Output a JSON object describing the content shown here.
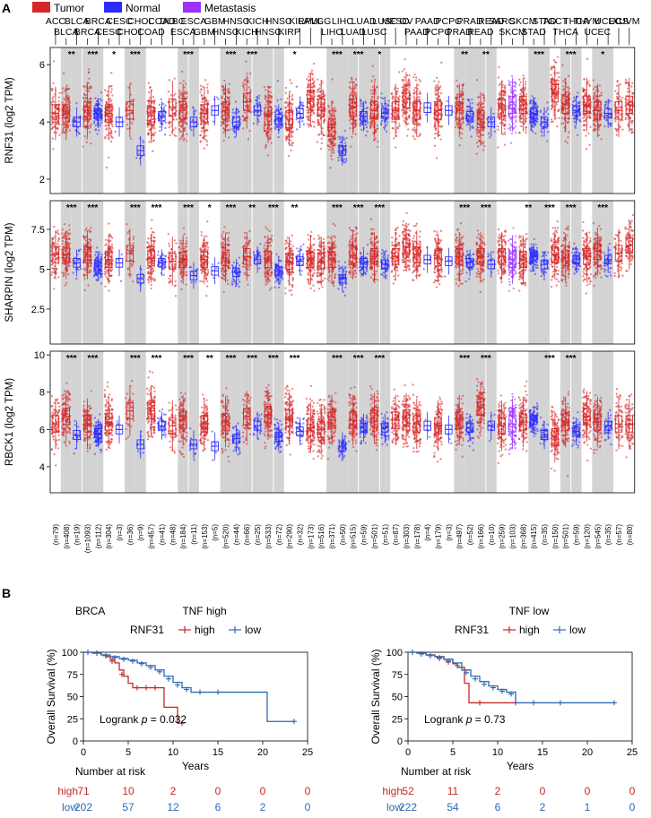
{
  "panel_a": {
    "label": "A",
    "legend": [
      {
        "label": "Tumor",
        "color": "#d62728"
      },
      {
        "label": "Normal",
        "color": "#2b2bff"
      },
      {
        "label": "Metastasis",
        "color": "#9b30ff"
      }
    ],
    "cancer_types": [
      {
        "name": "ACC",
        "top": true
      },
      {
        "name": "BLCA",
        "top": false
      },
      {
        "name": "BLCA",
        "top": true
      },
      {
        "name": "BRCA",
        "top": false
      },
      {
        "name": "BRCA",
        "top": true
      },
      {
        "name": "CESC",
        "top": false
      },
      {
        "name": "CESC",
        "top": true
      },
      {
        "name": "CHOL",
        "top": false
      },
      {
        "name": "CHOL",
        "top": true
      },
      {
        "name": "COAD",
        "top": false
      },
      {
        "name": "COAD",
        "top": true
      },
      {
        "name": "DLBC",
        "top": true
      },
      {
        "name": "ESCA",
        "top": false
      },
      {
        "name": "ESCA",
        "top": true
      },
      {
        "name": "GBM",
        "top": false
      },
      {
        "name": "GBM",
        "top": true
      },
      {
        "name": "HNSC",
        "top": false
      },
      {
        "name": "HNSC",
        "top": true
      },
      {
        "name": "KICH",
        "top": false
      },
      {
        "name": "KICH",
        "top": true
      },
      {
        "name": "HNSC",
        "top": false
      },
      {
        "name": "HNSC",
        "top": true
      },
      {
        "name": "KIRP",
        "top": false
      },
      {
        "name": "KIRP",
        "top": true
      },
      {
        "name": "LAML",
        "top": true
      },
      {
        "name": "LGG",
        "top": true
      },
      {
        "name": "LIHC",
        "top": false
      },
      {
        "name": "LIHC",
        "top": true
      },
      {
        "name": "LUAD",
        "top": false
      },
      {
        "name": "LUAD",
        "top": true
      },
      {
        "name": "LUSC",
        "top": false
      },
      {
        "name": "LUSC",
        "top": true
      },
      {
        "name": "MESO",
        "top": true
      },
      {
        "name": "OV",
        "top": true
      },
      {
        "name": "PAAD",
        "top": false
      },
      {
        "name": "PAAD",
        "top": true
      },
      {
        "name": "PCPG",
        "top": false
      },
      {
        "name": "PCPG",
        "top": true
      },
      {
        "name": "PRAD",
        "top": false
      },
      {
        "name": "PRAD",
        "top": true
      },
      {
        "name": "READ",
        "top": false
      },
      {
        "name": "READ",
        "top": true
      },
      {
        "name": "SARC",
        "top": true
      },
      {
        "name": "SKCM",
        "top": false
      },
      {
        "name": "SKCM",
        "top": true
      },
      {
        "name": "STAD",
        "top": false
      },
      {
        "name": "STAD",
        "top": true
      },
      {
        "name": "TGCT",
        "top": true
      },
      {
        "name": "THCA",
        "top": false
      },
      {
        "name": "THCA",
        "top": true
      },
      {
        "name": "THYM",
        "top": true
      },
      {
        "name": "UCEC",
        "top": false
      },
      {
        "name": "UCEC",
        "top": true
      },
      {
        "name": "UCS",
        "top": true
      },
      {
        "name": "UVM",
        "top": true
      }
    ],
    "sample_sizes": [
      "(n=79)",
      "(n=408)",
      "(n=19)",
      "(n=1093)",
      "(n=112)",
      "(n=304)",
      "(n=3)",
      "(n=36)",
      "(n=9)",
      "(n=457)",
      "(n=41)",
      "(n=48)",
      "(n=184)",
      "(n=11)",
      "(n=153)",
      "(n=5)",
      "(n=520)",
      "(n=44)",
      "(n=66)",
      "(n=25)",
      "(n=533)",
      "(n=72)",
      "(n=290)",
      "(n=32)",
      "(n=173)",
      "(n=516)",
      "(n=371)",
      "(n=50)",
      "(n=515)",
      "(n=59)",
      "(n=501)",
      "(n=51)",
      "(n=87)",
      "(n=303)",
      "(n=178)",
      "(n=4)",
      "(n=179)",
      "(n=3)",
      "(n=497)",
      "(n=52)",
      "(n=166)",
      "(n=10)",
      "(n=259)",
      "(n=103)",
      "(n=368)",
      "(n=415)",
      "(n=35)",
      "(n=150)",
      "(n=501)",
      "(n=59)",
      "(n=120)",
      "(n=545)",
      "(n=35)",
      "(n=57)",
      "(n=80)"
    ]
  },
  "chart_data": [
    {
      "type": "box",
      "gene": "RNF31",
      "ylabel": "RNF31 (log2 TPM)",
      "ylim": [
        1.5,
        6.6
      ],
      "yticks": [
        2,
        4,
        6
      ],
      "medians": [
        4.3,
        4.3,
        4.0,
        4.4,
        4.3,
        4.3,
        4.0,
        4.4,
        3.0,
        4.2,
        4.2,
        4.5,
        4.4,
        4.0,
        4.3,
        4.4,
        4.4,
        4.0,
        4.7,
        4.4,
        4.2,
        4.1,
        4.1,
        4.3,
        4.8,
        4.5,
        3.8,
        3.0,
        4.5,
        4.2,
        4.4,
        4.3,
        4.4,
        4.8,
        4.4,
        4.5,
        4.4,
        4.4,
        4.4,
        4.2,
        4.1,
        4.0,
        4.5,
        4.6,
        4.6,
        4.3,
        4.0,
        5.0,
        4.6,
        4.4,
        4.6,
        4.4,
        4.3,
        4.4,
        4.6
      ],
      "significance": [
        "",
        "**",
        "",
        "***",
        "",
        "*",
        "",
        "***",
        "",
        "",
        "",
        "",
        "***",
        "",
        "",
        "",
        "***",
        "",
        "***",
        "",
        "",
        "",
        "*",
        "",
        "",
        "",
        "***",
        "",
        "***",
        "",
        "*",
        "",
        "",
        "",
        "",
        "",
        "",
        "",
        "**",
        "",
        "**",
        "",
        "",
        "",
        "",
        "***",
        "",
        "",
        "***",
        "",
        "",
        "*",
        "",
        "",
        ""
      ]
    },
    {
      "type": "box",
      "gene": "SHARPIN",
      "ylabel": "SHARPIN (log2 TPM)",
      "ylim": [
        0.3,
        9.3
      ],
      "yticks": [
        2.5,
        5.0,
        7.5
      ],
      "medians": [
        5.9,
        5.9,
        5.4,
        5.9,
        5.2,
        5.6,
        5.4,
        6.0,
        4.4,
        5.7,
        5.4,
        5.5,
        5.6,
        4.6,
        5.6,
        4.9,
        5.7,
        4.8,
        5.8,
        5.6,
        5.6,
        4.9,
        5.5,
        5.5,
        5.6,
        5.5,
        5.6,
        4.4,
        5.9,
        5.4,
        5.8,
        5.3,
        5.8,
        6.4,
        5.9,
        5.6,
        5.7,
        5.5,
        5.8,
        5.4,
        5.8,
        5.3,
        5.8,
        5.6,
        5.6,
        5.8,
        5.3,
        5.9,
        5.7,
        5.6,
        5.8,
        6.1,
        5.6,
        6.0,
        6.5
      ],
      "significance": [
        "",
        "***",
        "",
        "***",
        "",
        "",
        "",
        "***",
        "",
        "***",
        "",
        "",
        "***",
        "",
        "*",
        "",
        "***",
        "",
        "**",
        "",
        "***",
        "",
        "**",
        "",
        "",
        "",
        "***",
        "",
        "***",
        "",
        "***",
        "",
        "",
        "",
        "",
        "",
        "",
        "",
        "***",
        "",
        "***",
        "",
        "",
        "",
        "**",
        "",
        "***",
        "",
        "***",
        "",
        "",
        "***",
        "",
        "",
        ""
      ]
    },
    {
      "type": "box",
      "gene": "RBCK1",
      "ylabel": "RBCK1 (log2 TPM)",
      "ylim": [
        2.6,
        10.2
      ],
      "yticks": [
        4,
        6,
        8,
        10
      ],
      "medians": [
        6.3,
        6.7,
        5.7,
        6.3,
        5.8,
        6.4,
        6.0,
        7.0,
        5.2,
        7.0,
        6.2,
        6.2,
        6.5,
        5.2,
        6.3,
        5.1,
        6.4,
        5.5,
        6.7,
        6.2,
        6.8,
        5.6,
        6.6,
        5.9,
        6.1,
        6.0,
        6.5,
        5.1,
        6.5,
        6.1,
        6.6,
        6.1,
        6.5,
        6.6,
        6.3,
        6.2,
        6.2,
        6.0,
        6.5,
        6.1,
        7.2,
        6.2,
        6.2,
        6.3,
        6.4,
        6.5,
        5.7,
        5.6,
        6.4,
        5.9,
        6.7,
        6.4,
        6.2,
        6.3,
        6.3
      ],
      "significance": [
        "",
        "***",
        "",
        "***",
        "",
        "",
        "",
        "***",
        "",
        "***",
        "",
        "",
        "***",
        "",
        "**",
        "",
        "***",
        "",
        "***",
        "",
        "***",
        "",
        "***",
        "",
        "",
        "",
        "***",
        "",
        "***",
        "",
        "***",
        "",
        "",
        "",
        "",
        "",
        "",
        "",
        "***",
        "",
        "***",
        "",
        "",
        "",
        "",
        "",
        "***",
        "",
        "***",
        "",
        "",
        "",
        "",
        "",
        ""
      ]
    },
    {
      "type": "line",
      "subtype": "kaplan-meier",
      "dataset": "BRCA",
      "title": "TNF high",
      "legend_title": "RNF31",
      "xlabel": "Years",
      "ylabel": "Overall Survival (%)",
      "xlim": [
        0,
        25
      ],
      "ylim": [
        0,
        100
      ],
      "xticks": [
        0,
        5,
        10,
        15,
        20,
        25
      ],
      "yticks": [
        0,
        25,
        50,
        75,
        100
      ],
      "annotation": {
        "prefix": "Logrank ",
        "p": "p",
        "rest": " = 0.032"
      },
      "series": [
        {
          "name": "high",
          "color": "#c62828",
          "steps": [
            [
              0,
              100
            ],
            [
              1,
              99
            ],
            [
              2,
              97
            ],
            [
              2.5,
              95
            ],
            [
              3,
              92
            ],
            [
              3.5,
              88
            ],
            [
              4,
              80
            ],
            [
              4.5,
              73
            ],
            [
              5,
              65
            ],
            [
              5.5,
              60
            ],
            [
              9,
              38
            ],
            [
              10.5,
              20
            ],
            [
              11,
              20
            ]
          ],
          "censored": [
            [
              1.5,
              99
            ],
            [
              3.2,
              90
            ],
            [
              4.3,
              75
            ],
            [
              6,
              60
            ],
            [
              7,
              60
            ],
            [
              8,
              60
            ],
            [
              11,
              20
            ]
          ]
        },
        {
          "name": "low",
          "color": "#2e6ab3",
          "steps": [
            [
              0,
              100
            ],
            [
              1,
              99
            ],
            [
              2,
              97
            ],
            [
              3,
              95
            ],
            [
              4,
              93
            ],
            [
              5,
              91
            ],
            [
              6,
              88
            ],
            [
              7,
              85
            ],
            [
              8,
              80
            ],
            [
              9,
              73
            ],
            [
              10,
              66
            ],
            [
              11,
              60
            ],
            [
              12,
              55
            ],
            [
              18,
              55
            ],
            [
              20.5,
              22
            ],
            [
              23.5,
              22
            ]
          ],
          "censored": [
            [
              0.5,
              100
            ],
            [
              1.5,
              99
            ],
            [
              2.5,
              96
            ],
            [
              3.5,
              94
            ],
            [
              4.5,
              92
            ],
            [
              5.5,
              90
            ],
            [
              6.5,
              87
            ],
            [
              7.5,
              83
            ],
            [
              8.5,
              78
            ],
            [
              9.5,
              70
            ],
            [
              10.5,
              63
            ],
            [
              11.5,
              58
            ],
            [
              13,
              55
            ],
            [
              15,
              55
            ],
            [
              23.5,
              22
            ]
          ]
        }
      ],
      "risk_table": {
        "title": "Number at risk",
        "rows": [
          {
            "name": "high",
            "color": "#c62828",
            "values": [
              "71",
              "10",
              "2",
              "0",
              "0",
              "0"
            ]
          },
          {
            "name": "low",
            "color": "#2e6ab3",
            "values": [
              "202",
              "57",
              "12",
              "6",
              "2",
              "0"
            ]
          }
        ]
      }
    },
    {
      "type": "line",
      "subtype": "kaplan-meier",
      "title": "TNF low",
      "legend_title": "RNF31",
      "xlabel": "Years",
      "ylabel": "Overall Survival (%)",
      "xlim": [
        0,
        25
      ],
      "ylim": [
        0,
        100
      ],
      "xticks": [
        0,
        5,
        10,
        15,
        20,
        25
      ],
      "yticks": [
        0,
        25,
        50,
        75,
        100
      ],
      "annotation": {
        "prefix": "Logrank ",
        "p": "p",
        "rest": " = 0.73"
      },
      "series": [
        {
          "name": "high",
          "color": "#c62828",
          "steps": [
            [
              0,
              100
            ],
            [
              1,
              99
            ],
            [
              2,
              97
            ],
            [
              3,
              95
            ],
            [
              4,
              92
            ],
            [
              5,
              87
            ],
            [
              5.5,
              83
            ],
            [
              6.3,
              65
            ],
            [
              6.8,
              43
            ],
            [
              12,
              43
            ]
          ],
          "censored": [
            [
              0.5,
              100
            ],
            [
              1.5,
              98
            ],
            [
              2.5,
              96
            ],
            [
              3.5,
              93
            ],
            [
              4.5,
              89
            ],
            [
              8,
              43
            ],
            [
              12,
              43
            ]
          ]
        },
        {
          "name": "low",
          "color": "#2e6ab3",
          "steps": [
            [
              0,
              100
            ],
            [
              1,
              99
            ],
            [
              2,
              97
            ],
            [
              3,
              95
            ],
            [
              4,
              92
            ],
            [
              5,
              88
            ],
            [
              6,
              80
            ],
            [
              7,
              73
            ],
            [
              8,
              67
            ],
            [
              9,
              62
            ],
            [
              10,
              58
            ],
            [
              11,
              55
            ],
            [
              12,
              43
            ],
            [
              23,
              43
            ]
          ],
          "censored": [
            [
              0.5,
              100
            ],
            [
              1.5,
              98
            ],
            [
              2.5,
              96
            ],
            [
              3.5,
              94
            ],
            [
              4.5,
              90
            ],
            [
              5.5,
              85
            ],
            [
              6.5,
              77
            ],
            [
              7.5,
              70
            ],
            [
              8.5,
              64
            ],
            [
              9.5,
              60
            ],
            [
              10.5,
              56
            ],
            [
              11.5,
              53
            ],
            [
              14,
              43
            ],
            [
              17,
              43
            ],
            [
              23,
              43
            ]
          ]
        }
      ],
      "risk_table": {
        "title": "Number at risk",
        "rows": [
          {
            "name": "high",
            "color": "#c62828",
            "values": [
              "52",
              "11",
              "2",
              "0",
              "0",
              "0"
            ]
          },
          {
            "name": "low",
            "color": "#2e6ab3",
            "values": [
              "222",
              "54",
              "6",
              "2",
              "1",
              "0"
            ]
          }
        ]
      }
    }
  ],
  "panel_b": {
    "label": "B",
    "high_label": "high",
    "low_label": "low"
  }
}
